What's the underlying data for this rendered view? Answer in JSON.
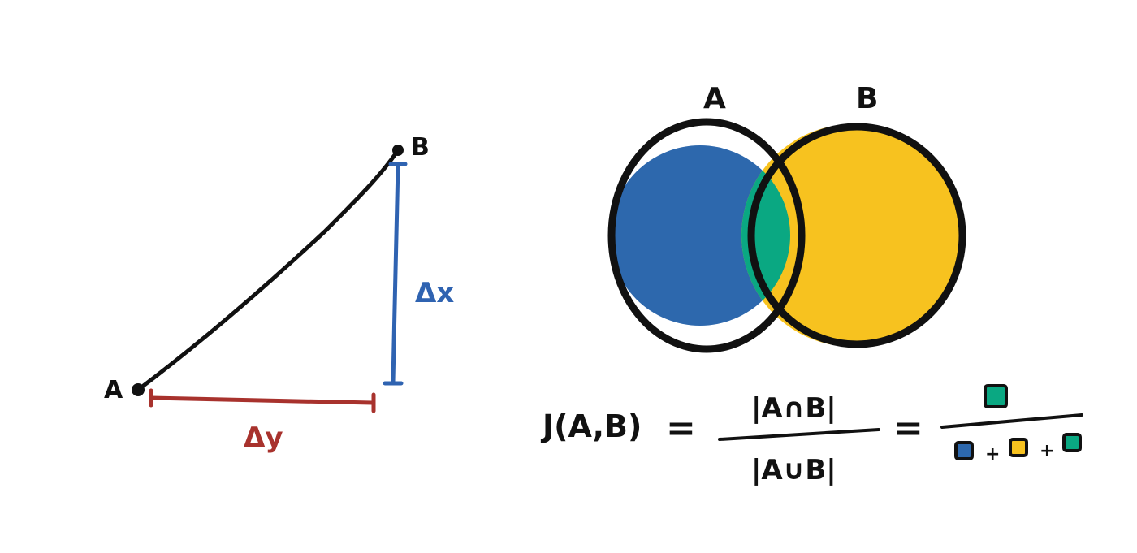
{
  "triangle": {
    "point_a_label": "A",
    "point_b_label": "B",
    "vertical_label": "Δx",
    "horizontal_label": "Δy",
    "colors": {
      "line": "#111111",
      "vertical": "#2f63b1",
      "horizontal": "#a8322d"
    }
  },
  "venn": {
    "set_a_label": "A",
    "set_b_label": "B",
    "colors": {
      "a": "#2d68ad",
      "b": "#f7c21f",
      "intersection": "#0aa882",
      "outline": "#111111"
    }
  },
  "formula": {
    "lhs": "J(A,B)",
    "equals": "=",
    "numerator": "|A∩B|",
    "denominator": "|A∪B|",
    "equals2": "=",
    "plus": "+",
    "icons": [
      "intersection-square",
      "a-square",
      "b-square",
      "intersection-square"
    ]
  }
}
